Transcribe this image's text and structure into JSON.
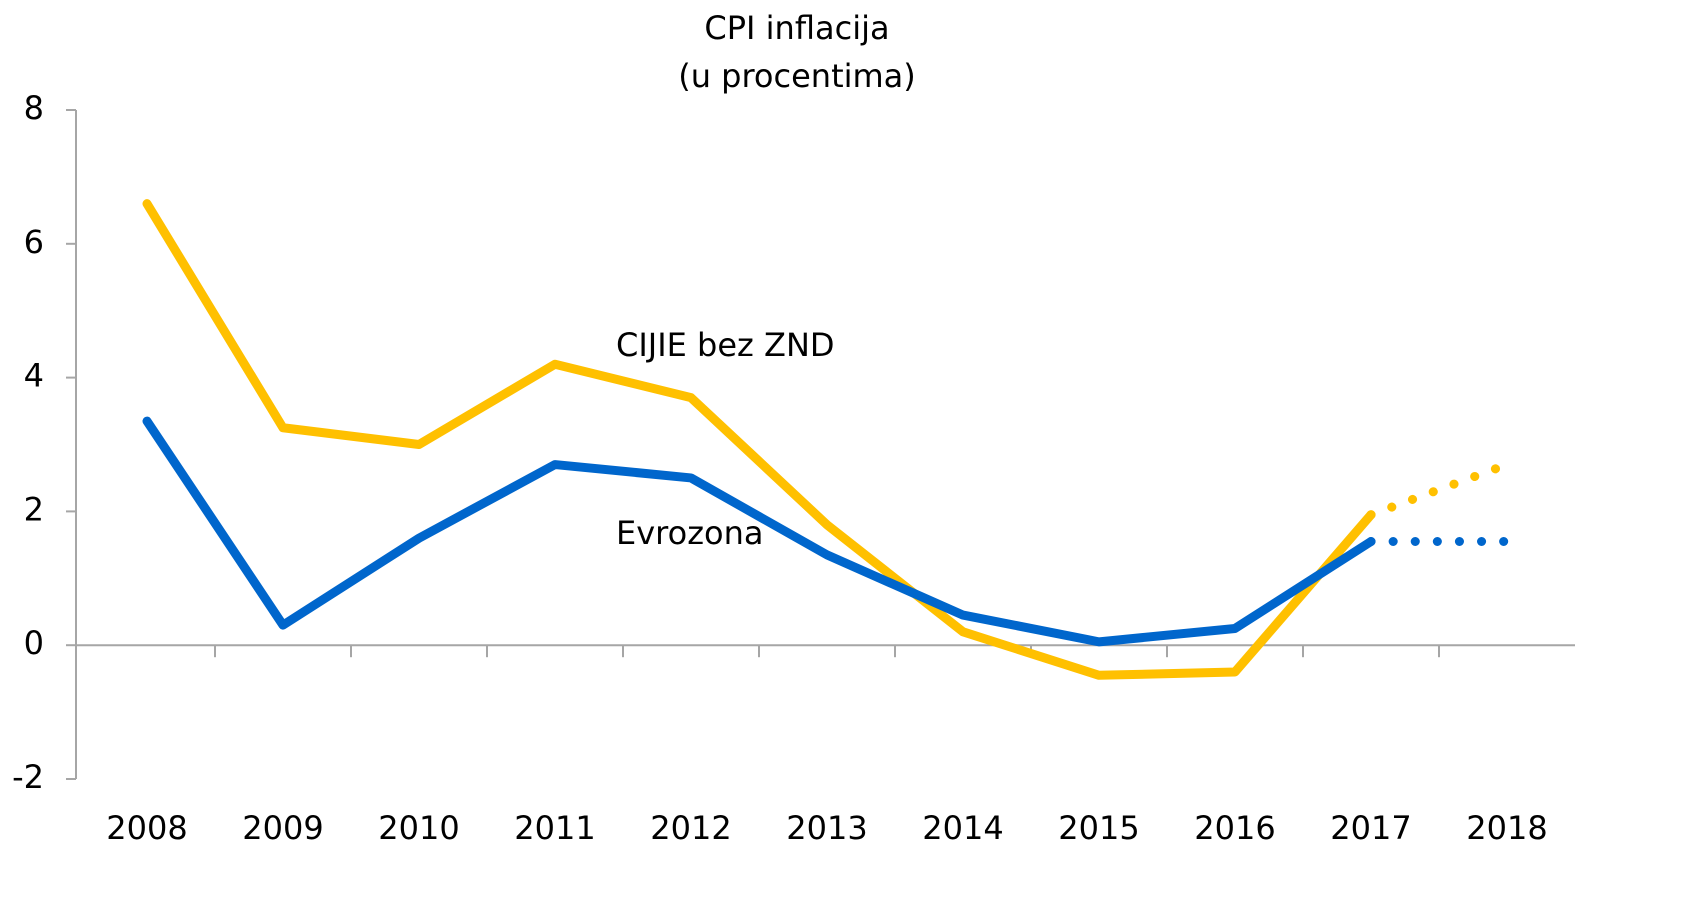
{
  "chart_data": {
    "type": "line",
    "title": "CPI inflacija",
    "subtitle": "(u procentima)",
    "categories": [
      "2008",
      "2009",
      "2010",
      "2011",
      "2012",
      "2013",
      "2014",
      "2015",
      "2016",
      "2017",
      "2018"
    ],
    "series": [
      {
        "name": "CIJIE bez ZND",
        "color": "#ffc000",
        "values": [
          6.6,
          3.25,
          3.0,
          4.2,
          3.7,
          1.8,
          0.2,
          -0.45,
          -0.4,
          1.95,
          2.7
        ]
      },
      {
        "name": "Evrozona",
        "color": "#0066cc",
        "values": [
          3.35,
          0.3,
          1.6,
          2.7,
          2.5,
          1.35,
          0.45,
          0.05,
          0.25,
          1.55,
          1.55
        ]
      }
    ],
    "dotted_from": "2017",
    "ylim": [
      -2,
      8
    ],
    "yticks": [
      -2,
      0,
      2,
      4,
      6,
      8
    ],
    "grid": false
  }
}
